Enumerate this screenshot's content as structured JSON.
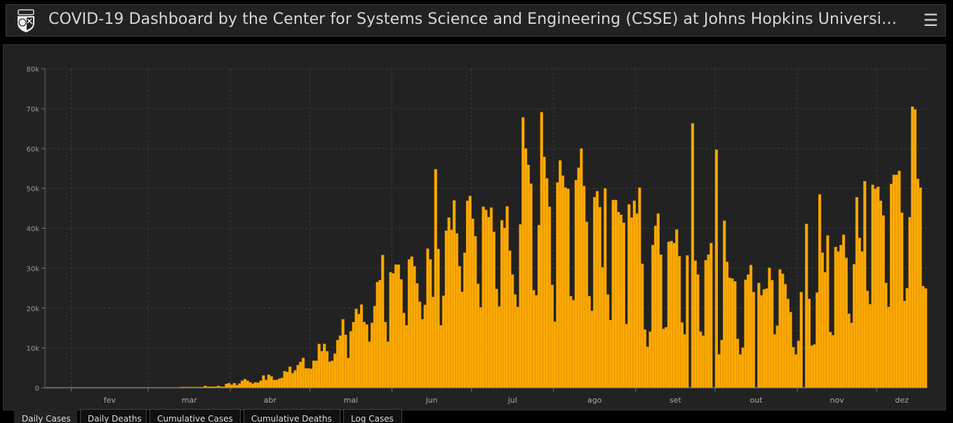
{
  "header": {
    "title": "COVID-19 Dashboard by the Center for Systems Science and Engineering (CSSE) at Johns Hopkins University (JHU)",
    "logo_icon": "jhu-shield-icon",
    "menu_icon": "hamburger-menu-icon"
  },
  "tabs": [
    {
      "label": "Daily Cases",
      "active": true
    },
    {
      "label": "Daily Deaths",
      "active": false
    },
    {
      "label": "Cumulative Cases",
      "active": false
    },
    {
      "label": "Cumulative Deaths",
      "active": false
    },
    {
      "label": "Log Cases",
      "active": false
    }
  ],
  "colors": {
    "bar": "#ffaa00",
    "background": "#222222",
    "grid": "#3c3c3c"
  },
  "chart_data": {
    "type": "bar",
    "title": "",
    "xlabel": "",
    "ylabel": "",
    "ylim": [
      0,
      80000
    ],
    "y_ticks": [
      {
        "value": 0,
        "label": "0"
      },
      {
        "value": 10000,
        "label": "10k"
      },
      {
        "value": 20000,
        "label": "20k"
      },
      {
        "value": 30000,
        "label": "30k"
      },
      {
        "value": 40000,
        "label": "40k"
      },
      {
        "value": 50000,
        "label": "50k"
      },
      {
        "value": 60000,
        "label": "60k"
      },
      {
        "value": 70000,
        "label": "70k"
      },
      {
        "value": 80000,
        "label": "80k"
      }
    ],
    "x_tick_labels": [
      "fev",
      "mar",
      "abr",
      "mai",
      "jun",
      "jul",
      "ago",
      "set",
      "out",
      "nov",
      "dez"
    ],
    "grid": true,
    "values": [
      0,
      0,
      0,
      0,
      0,
      0,
      0,
      0,
      0,
      0,
      0,
      0,
      0,
      0,
      0,
      0,
      0,
      0,
      0,
      0,
      0,
      0,
      0,
      0,
      0,
      0,
      0,
      0,
      0,
      0,
      0,
      0,
      0,
      0,
      0,
      0,
      0,
      0,
      0,
      0,
      0,
      0,
      0,
      0,
      0,
      0,
      0,
      0,
      0,
      0,
      0,
      50,
      30,
      100,
      80,
      120,
      100,
      100,
      100,
      100,
      500,
      300,
      300,
      300,
      300,
      500,
      300,
      300,
      1000,
      1200,
      800,
      1200,
      700,
      1100,
      1800,
      2200,
      1800,
      1400,
      1100,
      1400,
      1300,
      1800,
      3100,
      2000,
      3300,
      2900,
      2000,
      2000,
      2300,
      2500,
      4200,
      4000,
      5300,
      3700,
      4400,
      5700,
      6500,
      7500,
      4900,
      4900,
      4800,
      6800,
      6800,
      11000,
      9200,
      11000,
      9200,
      6600,
      6800,
      8600,
      12000,
      13100,
      17200,
      13300,
      7500,
      14200,
      16500,
      19800,
      18500,
      20900,
      16500,
      15900,
      11600,
      16300,
      20500,
      26500,
      27000,
      33300,
      16500,
      11600,
      29000,
      28700,
      30900,
      30900,
      27200,
      18800,
      15700,
      32200,
      32900,
      30500,
      26200,
      21600,
      17200,
      20800,
      34900,
      32200,
      22800,
      54800,
      34800,
      15700,
      23100,
      39400,
      42700,
      39600,
      47000,
      38700,
      30500,
      24100,
      33900,
      46900,
      48100,
      42400,
      38000,
      26100,
      20200,
      45400,
      44600,
      42800,
      45200,
      39100,
      24800,
      20400,
      42000,
      40100,
      45500,
      34400,
      28400,
      23400,
      20300,
      41000,
      67800,
      60000,
      55900,
      51200,
      24500,
      23200,
      40800,
      69100,
      57900,
      52500,
      45400,
      25800,
      16600,
      51500,
      57000,
      53200,
      50200,
      49900,
      23000,
      22000,
      52100,
      55200,
      60000,
      50600,
      41600,
      23000,
      19300,
      47800,
      49300,
      45300,
      30200,
      50000,
      23400,
      17000,
      47100,
      47100,
      44100,
      43400,
      41400,
      16000,
      46000,
      42700,
      46900,
      43700,
      50200,
      31100,
      14600,
      10300,
      14100,
      35800,
      40600,
      43700,
      33400,
      14800,
      15200,
      36600,
      36800,
      36300,
      39700,
      33000,
      16400,
      13400,
      33200,
      0,
      66300,
      31900,
      28400,
      14100,
      13100,
      32000,
      33400,
      36300,
      0,
      59700,
      8400,
      12000,
      41900,
      31600,
      27600,
      27400,
      26700,
      12300,
      8400,
      10100,
      27100,
      28400,
      30800,
      24000,
      0,
      26300,
      23200,
      24700,
      24900,
      30100,
      27000,
      13400,
      15600,
      29700,
      28600,
      26000,
      22300,
      19000,
      10200,
      8400,
      11800,
      24000,
      0,
      41100,
      22300,
      10600,
      10900,
      23900,
      48500,
      33900,
      29000,
      38200,
      14000,
      13200,
      35300,
      34200,
      35800,
      38400,
      32600,
      18600,
      16300,
      31000,
      47800,
      37600,
      34200,
      51800,
      24300,
      21000,
      50900,
      49900,
      50400,
      46900,
      43200,
      26300,
      20300,
      51100,
      53400,
      53400,
      54400,
      43900,
      21800,
      25000,
      42800,
      70500,
      69800,
      52400,
      50200,
      25500,
      24900
    ]
  }
}
